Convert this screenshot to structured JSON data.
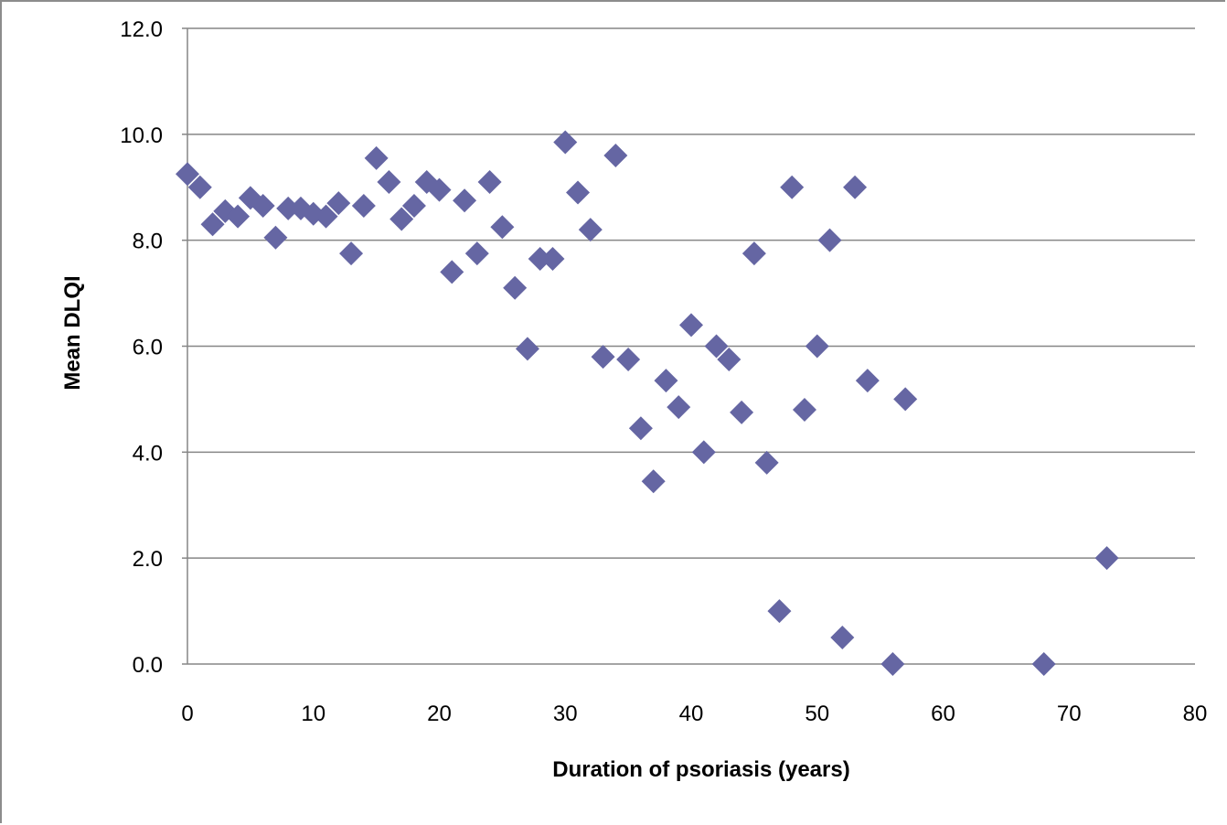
{
  "chart_data": {
    "type": "scatter",
    "title": "",
    "xlabel": "Duration of psoriasis (years)",
    "ylabel": "Mean DLQI",
    "xlim": [
      0,
      80
    ],
    "ylim": [
      0,
      12
    ],
    "x_ticks": [
      "0",
      "10",
      "20",
      "30",
      "40",
      "50",
      "60",
      "70",
      "80"
    ],
    "y_ticks": [
      "0.0",
      "2.0",
      "4.0",
      "6.0",
      "8.0",
      "10.0",
      "12.0"
    ],
    "grid": "horizontal",
    "legend": "none",
    "marker": "diamond",
    "marker_color": "#6566a3",
    "series": [
      {
        "points": [
          [
            0,
            9.25
          ],
          [
            1,
            9.0
          ],
          [
            2,
            8.3
          ],
          [
            3,
            8.55
          ],
          [
            4,
            8.45
          ],
          [
            5,
            8.8
          ],
          [
            6,
            8.65
          ],
          [
            7,
            8.05
          ],
          [
            8,
            8.6
          ],
          [
            9,
            8.6
          ],
          [
            10,
            8.5
          ],
          [
            11,
            8.45
          ],
          [
            12,
            8.7
          ],
          [
            13,
            7.75
          ],
          [
            14,
            8.65
          ],
          [
            15,
            9.55
          ],
          [
            16,
            9.1
          ],
          [
            17,
            8.4
          ],
          [
            18,
            8.65
          ],
          [
            19,
            9.1
          ],
          [
            20,
            8.95
          ],
          [
            21,
            7.4
          ],
          [
            22,
            8.75
          ],
          [
            23,
            7.75
          ],
          [
            24,
            9.1
          ],
          [
            25,
            8.25
          ],
          [
            26,
            7.1
          ],
          [
            27,
            5.95
          ],
          [
            28,
            7.65
          ],
          [
            29,
            7.65
          ],
          [
            30,
            9.85
          ],
          [
            31,
            8.9
          ],
          [
            32,
            8.2
          ],
          [
            33,
            5.8
          ],
          [
            34,
            9.6
          ],
          [
            35,
            5.75
          ],
          [
            36,
            4.45
          ],
          [
            37,
            3.45
          ],
          [
            38,
            5.35
          ],
          [
            39,
            4.85
          ],
          [
            40,
            6.4
          ],
          [
            41,
            4.0
          ],
          [
            42,
            6.0
          ],
          [
            43,
            5.75
          ],
          [
            44,
            4.75
          ],
          [
            45,
            7.75
          ],
          [
            46,
            3.8
          ],
          [
            47,
            1.0
          ],
          [
            48,
            9.0
          ],
          [
            49,
            4.8
          ],
          [
            50,
            6.0
          ],
          [
            51,
            8.0
          ],
          [
            52,
            0.5
          ],
          [
            53,
            9.0
          ],
          [
            54,
            5.35
          ],
          [
            56,
            0.0
          ],
          [
            57,
            5.0
          ],
          [
            68,
            0.0
          ],
          [
            73,
            2.0
          ]
        ]
      }
    ]
  }
}
